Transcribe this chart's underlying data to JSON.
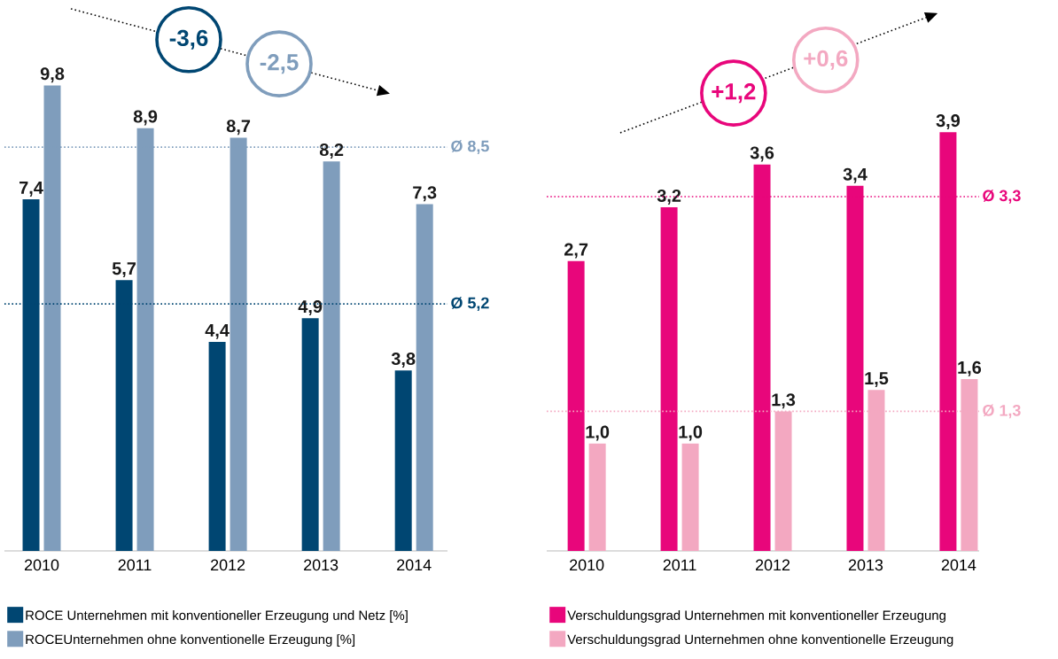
{
  "chart_data": [
    {
      "type": "bar",
      "categories": [
        "2010",
        "2011",
        "2012",
        "2013",
        "2014"
      ],
      "series": [
        {
          "name": "ROCE Unternehmen mit konventioneller Erzeugung und Netz [%]",
          "color": "#004672",
          "values": [
            7.4,
            5.7,
            4.4,
            4.9,
            3.8
          ],
          "value_labels": [
            "7,4",
            "5,7",
            "4,4",
            "4,9",
            "3,8"
          ]
        },
        {
          "name": "ROCEUnternehmen ohne konventionelle Erzeugung [%]",
          "color": "#7f9dbc",
          "values": [
            9.8,
            8.9,
            8.7,
            8.2,
            7.3
          ],
          "value_labels": [
            "9,8",
            "8,9",
            "8,7",
            "8,2",
            "7,3"
          ]
        }
      ],
      "tick_labels": "x",
      "legend": "bottom",
      "ref_lines": [
        {
          "axis": "y",
          "value": 8.5,
          "label": "Ø 8,5",
          "color": "#7f9dbc",
          "line_style": "dotted"
        },
        {
          "axis": "y",
          "value": 5.2,
          "label": "Ø 5,2",
          "color": "#004672",
          "line_style": "dotted"
        }
      ],
      "annotations": [
        "-3,6",
        "-2,5"
      ]
    },
    {
      "type": "bar",
      "categories": [
        "2010",
        "2011",
        "2012",
        "2013",
        "2014"
      ],
      "series": [
        {
          "name": "Verschuldungsgrad Unternehmen mit konventioneller Erzeugung",
          "color": "#e8067b",
          "values": [
            2.7,
            3.2,
            3.6,
            3.4,
            3.9
          ],
          "value_labels": [
            "2,7",
            "3,2",
            "3,6",
            "3,4",
            "3,9"
          ]
        },
        {
          "name": "Verschuldungsgrad Unternehmen ohne konventionelle Erzeugung",
          "color": "#f3a8c1",
          "values": [
            1.0,
            1.0,
            1.3,
            1.5,
            1.6
          ],
          "value_labels": [
            "1,0",
            "1,0",
            "1,3",
            "1,5",
            "1,6"
          ]
        }
      ],
      "tick_labels": "x",
      "legend": "bottom",
      "ref_lines": [
        {
          "axis": "y",
          "value": 3.3,
          "label": "Ø 3,3",
          "color": "#e8067b",
          "line_style": "dotted"
        },
        {
          "axis": "y",
          "value": 1.3,
          "label": "Ø 1,3",
          "color": "#f3a8c1",
          "line_style": "dotted"
        }
      ],
      "annotations": [
        "+1,2",
        "+0,6"
      ]
    }
  ]
}
